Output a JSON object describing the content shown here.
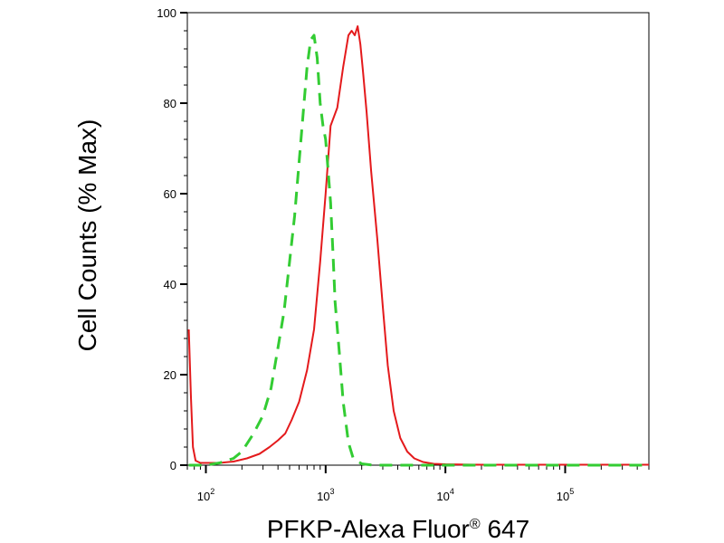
{
  "chart_data": {
    "type": "line",
    "title": "",
    "xlabel": "PFKP-Alexa Fluor",
    "xlabel_superscript": "®",
    "xlabel_suffix": " 647",
    "ylabel": "Cell Counts (% Max)",
    "x_scale": "log",
    "xlim": [
      70,
      500000
    ],
    "ylim": [
      0,
      100
    ],
    "y_ticks": [
      {
        "value": 0,
        "label": "0"
      },
      {
        "value": 20,
        "label": "20"
      },
      {
        "value": 40,
        "label": "40"
      },
      {
        "value": 60,
        "label": "60"
      },
      {
        "value": 80,
        "label": "80"
      },
      {
        "value": 100,
        "label": "100"
      }
    ],
    "x_ticks": [
      {
        "value": 100,
        "base": "10",
        "exp": "2"
      },
      {
        "value": 1000,
        "base": "10",
        "exp": "3"
      },
      {
        "value": 10000,
        "base": "10",
        "exp": "4"
      },
      {
        "value": 100000,
        "base": "10",
        "exp": "5"
      }
    ],
    "grid": false,
    "legend": "none",
    "series": [
      {
        "color": "#e41a1c",
        "style": "solid",
        "x": [
          72,
          75,
          78,
          82,
          90,
          100,
          130,
          170,
          220,
          280,
          340,
          400,
          460,
          520,
          600,
          700,
          800,
          900,
          1000,
          1100,
          1250,
          1400,
          1550,
          1650,
          1750,
          1850,
          1950,
          2050,
          2200,
          2400,
          2700,
          3000,
          3300,
          3700,
          4200,
          4800,
          5500,
          6500,
          8000,
          10000,
          20000,
          100000,
          500000
        ],
        "y": [
          30,
          15,
          4,
          1,
          0.5,
          0.5,
          0.5,
          0.8,
          1.5,
          2.5,
          4,
          5.5,
          7,
          10,
          14,
          21,
          30,
          45,
          60,
          75,
          79,
          88,
          95,
          96,
          95,
          97,
          93,
          87,
          78,
          65,
          50,
          35,
          22,
          12,
          6,
          3,
          1.5,
          0.7,
          0.3,
          0.2,
          0.1,
          0.1,
          0.1
        ]
      },
      {
        "color": "#33cc33",
        "style": "dashed",
        "x": [
          72,
          100,
          130,
          170,
          200,
          250,
          300,
          350,
          400,
          450,
          500,
          550,
          600,
          650,
          700,
          750,
          800,
          850,
          900,
          950,
          1000,
          1050,
          1100,
          1150,
          1200,
          1300,
          1400,
          1550,
          1700,
          2000,
          2500,
          4000,
          100000,
          500000
        ],
        "y": [
          0,
          0,
          0.5,
          1.5,
          3,
          7,
          11,
          17,
          26,
          34,
          45,
          55,
          67,
          78,
          88,
          94,
          95,
          90,
          80,
          75,
          72,
          65,
          58,
          47,
          36,
          25,
          14,
          5,
          1.5,
          0.3,
          0,
          0,
          0,
          0
        ]
      }
    ]
  }
}
